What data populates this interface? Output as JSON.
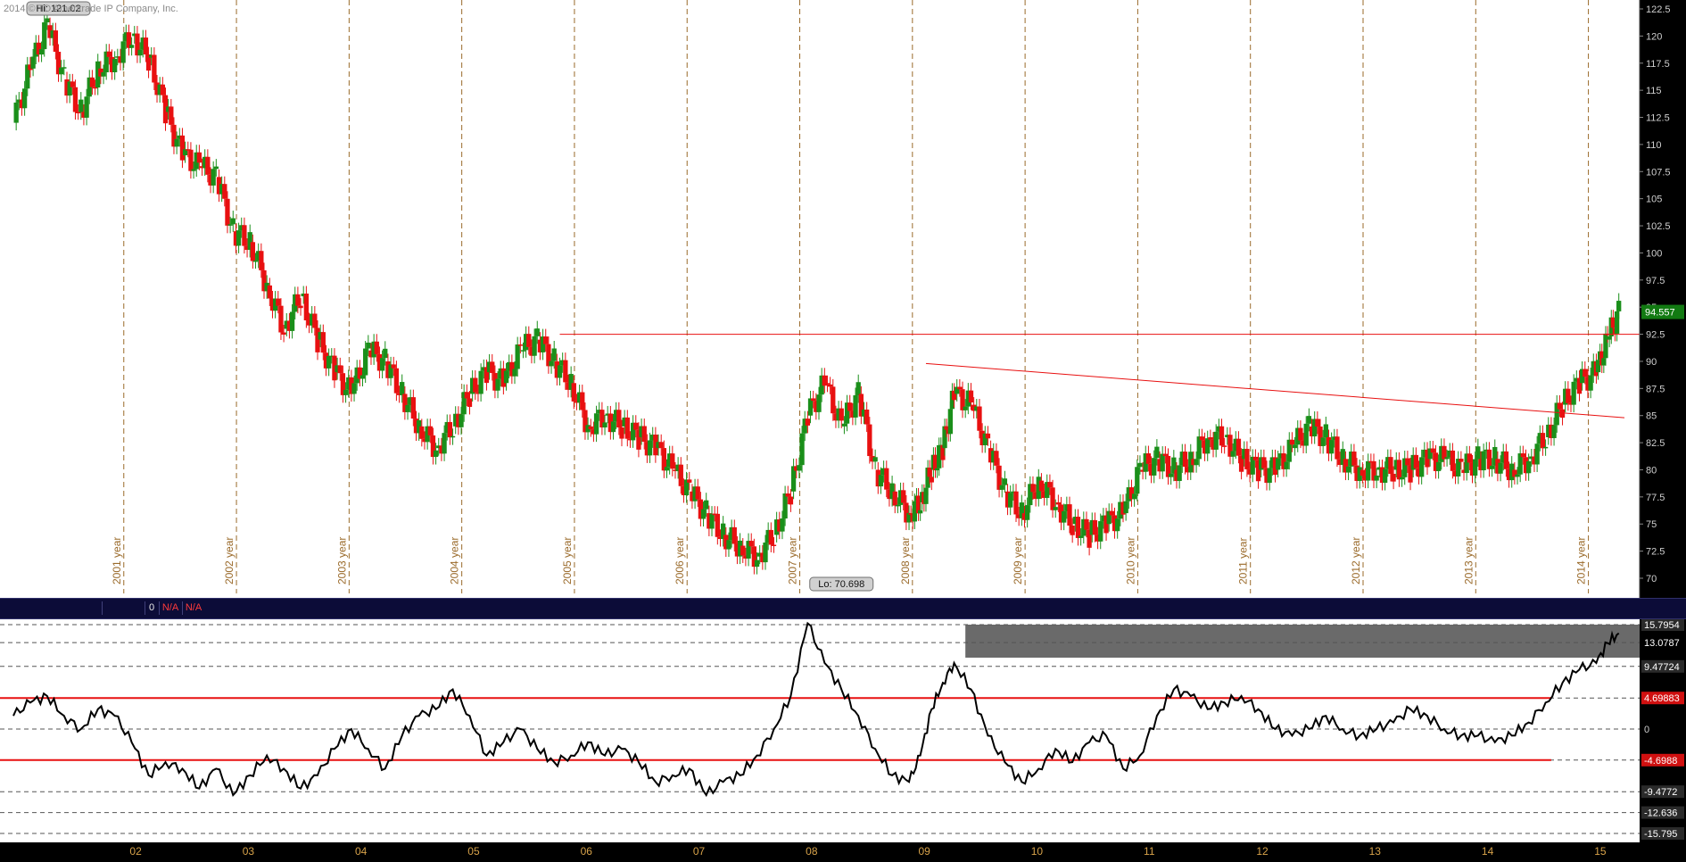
{
  "copyright": "2014 © TD Ameritrade IP Company, Inc.",
  "price_axis": [
    "122.5",
    "120",
    "117.5",
    "115",
    "112.5",
    "110",
    "107.5",
    "105",
    "102.5",
    "100",
    "97.5",
    "95",
    "92.5",
    "90",
    "87.5",
    "85",
    "82.5",
    "80",
    "77.5",
    "75",
    "72.5",
    "70"
  ],
  "year_labels": [
    "2001 year",
    "2002 year",
    "2003 year",
    "2004 year",
    "2005 year",
    "2006 year",
    "2007 year",
    "2008 year",
    "2009 year",
    "2010 year",
    "2011 year",
    "2012 year",
    "2013 year",
    "2014 year"
  ],
  "hi_label": "Hi: 121.02",
  "lo_label": "Lo: 70.698",
  "last_price": "94.557",
  "divider": {
    "cell_zero": "0",
    "cell_na1": "N/A",
    "cell_na2": "N/A"
  },
  "osc_axis": {
    "top": "15.7954",
    "upper_band": "13.0787",
    "level3": "9.47724",
    "upper_line": "4.69883",
    "zero": "0",
    "lower_line": "-4.6988",
    "neg3": "-9.4772",
    "neg4": "-12.636",
    "bottom": "-15.795"
  },
  "bottom_axis": [
    "02",
    "03",
    "04",
    "05",
    "06",
    "07",
    "08",
    "09",
    "10",
    "11",
    "12",
    "13",
    "14",
    "15"
  ],
  "colors": {
    "up": "#1a8f1a",
    "down": "#e81010",
    "trend": "#e81010",
    "grid_v": "#9a6a2a",
    "last_bg": "#127a12"
  },
  "chart_data": [
    {
      "type": "candlestick",
      "title": "",
      "ylim": [
        70,
        122.5
      ],
      "x_labels": [
        "2001 year",
        "2002 year",
        "2003 year",
        "2004 year",
        "2005 year",
        "2006 year",
        "2007 year",
        "2008 year",
        "2009 year",
        "2010 year",
        "2011 year",
        "2012 year",
        "2013 year",
        "2014 year"
      ],
      "x": [
        2000.0,
        2000.15,
        2000.3,
        2000.45,
        2000.6,
        2000.75,
        2000.9,
        2001.05,
        2001.2,
        2001.35,
        2001.5,
        2001.65,
        2001.8,
        2001.95,
        2002.1,
        2002.25,
        2002.4,
        2002.55,
        2002.7,
        2002.85,
        2003.0,
        2003.15,
        2003.3,
        2003.45,
        2003.6,
        2003.75,
        2003.9,
        2004.05,
        2004.2,
        2004.35,
        2004.5,
        2004.65,
        2004.8,
        2004.95,
        2005.1,
        2005.25,
        2005.4,
        2005.55,
        2005.7,
        2005.85,
        2006.0,
        2006.15,
        2006.3,
        2006.45,
        2006.6,
        2006.75,
        2006.9,
        2007.05,
        2007.2,
        2007.35,
        2007.5,
        2007.65,
        2007.8,
        2007.95,
        2008.05,
        2008.15,
        2008.25,
        2008.35,
        2008.5,
        2008.65,
        2008.8,
        2008.95,
        2009.1,
        2009.25,
        2009.4,
        2009.55,
        2009.7,
        2009.85,
        2010.0,
        2010.15,
        2010.3,
        2010.45,
        2010.6,
        2010.75,
        2010.9,
        2011.05,
        2011.2,
        2011.35,
        2011.5,
        2011.65,
        2011.8,
        2011.95,
        2012.1,
        2012.25,
        2012.4,
        2012.55,
        2012.7,
        2012.85,
        2013.0,
        2013.15,
        2013.3,
        2013.45,
        2013.6,
        2013.75,
        2013.9,
        2014.05,
        2014.15,
        2014.25
      ],
      "close": [
        112,
        117,
        121,
        116,
        113,
        117,
        118,
        120,
        118,
        113,
        109,
        108,
        107,
        102,
        101,
        97,
        93,
        96,
        92,
        89,
        87,
        91,
        90,
        87,
        84,
        82,
        84,
        87,
        89,
        88,
        91,
        92,
        90,
        88,
        84,
        85,
        84,
        83,
        82,
        80,
        78,
        76,
        74,
        73,
        72,
        74,
        78,
        85,
        88,
        84,
        87,
        80,
        78,
        76,
        77,
        80,
        82,
        87,
        86,
        82,
        78,
        76,
        79,
        77,
        75,
        74,
        75,
        76,
        80,
        81,
        80,
        81,
        83,
        83,
        81,
        80,
        80,
        82,
        84,
        83,
        81,
        80,
        80,
        80,
        80,
        81,
        81,
        80,
        81,
        81,
        80,
        81,
        83,
        86,
        88,
        89,
        92,
        94.557
      ],
      "hi": {
        "value": 121.02,
        "label": "Hi: 121.02"
      },
      "lo": {
        "value": 70.698,
        "label": "Lo: 70.698"
      },
      "last": 94.557,
      "horizontal_line": 92.5,
      "trendline": {
        "from": [
          2008.1,
          89.8
        ],
        "to": [
          2014.3,
          84.8
        ]
      }
    },
    {
      "type": "line",
      "title": "",
      "ylim": [
        -15.795,
        15.7954
      ],
      "reference_lines": [
        4.69883,
        -4.6988
      ],
      "band": {
        "from": 10.8,
        "to": 15.7954,
        "start_x": 2008.45
      },
      "x": [
        2000.0,
        2000.15,
        2000.3,
        2000.45,
        2000.6,
        2000.75,
        2000.9,
        2001.05,
        2001.2,
        2001.35,
        2001.5,
        2001.65,
        2001.8,
        2001.95,
        2002.1,
        2002.25,
        2002.4,
        2002.55,
        2002.7,
        2002.85,
        2003.0,
        2003.15,
        2003.3,
        2003.45,
        2003.6,
        2003.75,
        2003.9,
        2004.05,
        2004.2,
        2004.35,
        2004.5,
        2004.65,
        2004.8,
        2004.95,
        2005.1,
        2005.25,
        2005.4,
        2005.55,
        2005.7,
        2005.85,
        2006.0,
        2006.15,
        2006.3,
        2006.45,
        2006.6,
        2006.75,
        2006.9,
        2007.05,
        2007.2,
        2007.35,
        2007.5,
        2007.65,
        2007.8,
        2007.95,
        2008.05,
        2008.15,
        2008.25,
        2008.35,
        2008.5,
        2008.65,
        2008.8,
        2008.95,
        2009.1,
        2009.25,
        2009.4,
        2009.55,
        2009.7,
        2009.85,
        2010.0,
        2010.15,
        2010.3,
        2010.45,
        2010.6,
        2010.75,
        2010.9,
        2011.05,
        2011.2,
        2011.35,
        2011.5,
        2011.65,
        2011.8,
        2011.95,
        2012.1,
        2012.25,
        2012.4,
        2012.55,
        2012.7,
        2012.85,
        2013.0,
        2013.15,
        2013.3,
        2013.45,
        2013.6,
        2013.75,
        2013.9,
        2014.05,
        2014.15,
        2014.25
      ],
      "values": [
        2,
        4,
        5,
        2,
        0,
        3,
        2,
        -2,
        -7,
        -5,
        -6,
        -9,
        -6,
        -10,
        -7,
        -4,
        -6,
        -9,
        -7,
        -3,
        0,
        -3,
        -6,
        -1,
        2,
        3,
        6,
        2,
        -4,
        -2,
        0,
        -3,
        -5,
        -4,
        -2,
        -4,
        -3,
        -5,
        -8,
        -7,
        -6,
        -10,
        -8,
        -7,
        -4,
        0,
        5,
        16,
        10,
        6,
        2,
        -3,
        -7,
        -8,
        -4,
        3,
        7,
        10,
        6,
        -1,
        -5,
        -8,
        -6,
        -3,
        -5,
        -2,
        -1,
        -6,
        -4,
        2,
        6,
        5,
        3,
        4,
        5,
        3,
        0,
        -1,
        0,
        2,
        0,
        -1,
        0,
        1,
        3,
        2,
        0,
        -1,
        -1,
        -2,
        -1,
        1,
        4,
        7,
        9,
        10,
        13,
        14.5
      ]
    }
  ]
}
